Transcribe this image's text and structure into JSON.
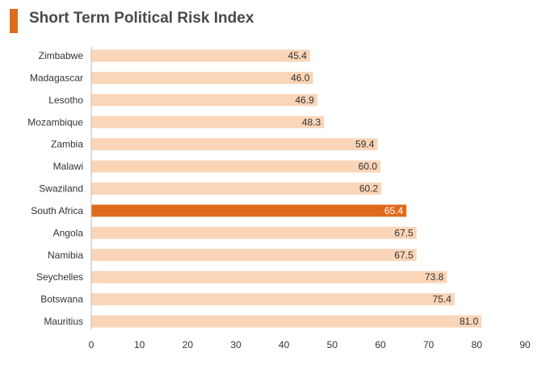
{
  "colors": {
    "accent": "#e06a1b",
    "bar": "#fad5b8",
    "highlight": "#e06a1b",
    "axis": "#bdbdbd",
    "label_on_bar": "#333333",
    "label_on_highlight": "#ffffff"
  },
  "chart_data": {
    "type": "bar",
    "orientation": "horizontal",
    "title": "Short Term Political Risk Index",
    "xlabel": "",
    "ylabel": "",
    "categories": [
      "Zimbabwe",
      "Madagascar",
      "Lesotho",
      "Mozambique",
      "Zambia",
      "Malawi",
      "Swaziland",
      "South Africa",
      "Angola",
      "Namibia",
      "Seychelles",
      "Botswana",
      "Mauritius"
    ],
    "values": [
      45.4,
      46.0,
      46.9,
      48.3,
      59.4,
      60.0,
      60.2,
      65.4,
      67.5,
      67.5,
      73.8,
      75.4,
      81.0
    ],
    "value_labels": [
      "45.4",
      "46.0",
      "46.9",
      "48.3",
      "59.4",
      "60.0",
      "60.2",
      "65.4",
      "67.5",
      "67.5",
      "73.8",
      "75.4",
      "81.0"
    ],
    "highlight": "South Africa",
    "xlim": [
      0,
      90
    ],
    "xticks": [
      0,
      10,
      20,
      30,
      40,
      50,
      60,
      70,
      80,
      90
    ],
    "grid": false,
    "legend": "none"
  }
}
